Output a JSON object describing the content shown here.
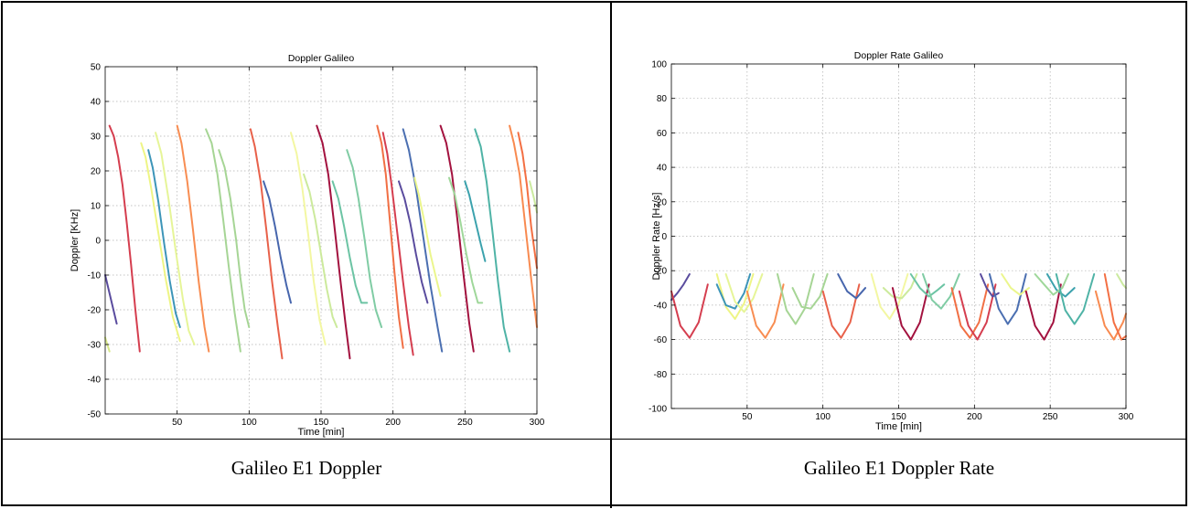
{
  "captions": {
    "left": "Galileo E1 Doppler",
    "right": "Galileo E1 Doppler Rate"
  },
  "chart_data": [
    {
      "type": "line",
      "title": "Doppler Galileo",
      "xlabel": "Time [min]",
      "ylabel": "Doppler [KHz]",
      "xlim": [
        0,
        300
      ],
      "ylim": [
        -50,
        50
      ],
      "xticks": [
        50,
        100,
        150,
        200,
        250,
        300
      ],
      "yticks": [
        50,
        40,
        30,
        20,
        10,
        0,
        -10,
        -20,
        -30,
        -40,
        -50
      ],
      "grid": true,
      "series": [
        {
          "color": "#5a4c9e",
          "x": [
            0,
            8
          ],
          "y": [
            -10,
            -24
          ]
        },
        {
          "color": "#d53e4f",
          "x": [
            3,
            6,
            9,
            12,
            15,
            18,
            21,
            24
          ],
          "y": [
            33,
            30,
            24,
            16,
            5,
            -7,
            -20,
            -32
          ]
        },
        {
          "color": "#d8e88a",
          "x": [
            0,
            3
          ],
          "y": [
            -28,
            -32
          ]
        },
        {
          "color": "#eef585",
          "x": [
            25,
            28,
            32,
            37,
            42,
            47,
            52
          ],
          "y": [
            28,
            24,
            15,
            2,
            -11,
            -22,
            -29
          ]
        },
        {
          "color": "#3d95b8",
          "x": [
            30,
            33,
            37,
            41,
            45,
            49,
            52
          ],
          "y": [
            26,
            21,
            11,
            -1,
            -12,
            -21,
            -25
          ]
        },
        {
          "color": "#e6f598",
          "x": [
            35,
            39,
            44,
            49,
            54,
            58,
            62
          ],
          "y": [
            31,
            25,
            12,
            -3,
            -17,
            -26,
            -30
          ]
        },
        {
          "color": "#f88d52",
          "x": [
            50,
            53,
            57,
            61,
            65,
            69,
            72
          ],
          "y": [
            33,
            28,
            17,
            3,
            -12,
            -25,
            -32
          ]
        },
        {
          "color": "#a6d595",
          "x": [
            70,
            74,
            78,
            82,
            86,
            90,
            94
          ],
          "y": [
            32,
            28,
            19,
            6,
            -8,
            -21,
            -32
          ]
        },
        {
          "color": "#a6d595",
          "x": [
            79,
            83,
            87,
            91,
            94,
            97,
            100
          ],
          "y": [
            26,
            21,
            12,
            0,
            -11,
            -20,
            -25
          ]
        },
        {
          "color": "#e8614a",
          "x": [
            101,
            104,
            108,
            112,
            116,
            120,
            123
          ],
          "y": [
            32,
            27,
            17,
            3,
            -12,
            -25,
            -34
          ]
        },
        {
          "color": "#4766ad",
          "x": [
            110,
            114,
            118,
            122,
            126,
            129
          ],
          "y": [
            17,
            12,
            4,
            -5,
            -13,
            -18
          ]
        },
        {
          "color": "#f3f7a2",
          "x": [
            129,
            133,
            137,
            141,
            145,
            149,
            153
          ],
          "y": [
            31,
            25,
            15,
            2,
            -12,
            -23,
            -30
          ]
        },
        {
          "color": "#ccea9c",
          "x": [
            138,
            142,
            146,
            150,
            154,
            158,
            161
          ],
          "y": [
            19,
            14,
            6,
            -4,
            -14,
            -22,
            -25
          ]
        },
        {
          "color": "#a3123f",
          "x": [
            147,
            151,
            155,
            159,
            163,
            167,
            170
          ],
          "y": [
            33,
            28,
            19,
            5,
            -10,
            -24,
            -34
          ]
        },
        {
          "color": "#6cc4a4",
          "x": [
            158,
            162,
            166,
            170,
            174,
            178,
            182
          ],
          "y": [
            17,
            12,
            4,
            -5,
            -13,
            -18,
            -18
          ]
        },
        {
          "color": "#80cca4",
          "x": [
            168,
            172,
            176,
            180,
            184,
            188,
            192
          ],
          "y": [
            26,
            21,
            12,
            1,
            -11,
            -20,
            -25
          ]
        },
        {
          "color": "#f16f44",
          "x": [
            189,
            192,
            195,
            198,
            201,
            204,
            207
          ],
          "y": [
            33,
            28,
            19,
            5,
            -9,
            -22,
            -31
          ]
        },
        {
          "color": "#d53e4f",
          "x": [
            193,
            196,
            199,
            203,
            207,
            211,
            214
          ],
          "y": [
            31,
            25,
            16,
            2,
            -12,
            -25,
            -33
          ]
        },
        {
          "color": "#5a4c9e",
          "x": [
            204,
            208,
            212,
            216,
            220,
            224
          ],
          "y": [
            17,
            12,
            5,
            -4,
            -12,
            -18
          ]
        },
        {
          "color": "#4b6fb1",
          "x": [
            207,
            211,
            216,
            221,
            226,
            231,
            234
          ],
          "y": [
            32,
            26,
            15,
            1,
            -13,
            -25,
            -32
          ]
        },
        {
          "color": "#ebf68c",
          "x": [
            215,
            218,
            222,
            226,
            230,
            233
          ],
          "y": [
            18,
            13,
            5,
            -4,
            -11,
            -16
          ]
        },
        {
          "color": "#a3123f",
          "x": [
            233,
            237,
            241,
            245,
            249,
            253,
            256
          ],
          "y": [
            33,
            28,
            19,
            5,
            -10,
            -24,
            -32
          ]
        },
        {
          "color": "#3ca2ad",
          "x": [
            250,
            253,
            257,
            261,
            264
          ],
          "y": [
            17,
            13,
            6,
            -1,
            -6
          ]
        },
        {
          "color": "#9fd79a",
          "x": [
            239,
            243,
            247,
            251,
            255,
            259,
            262
          ],
          "y": [
            18,
            13,
            5,
            -4,
            -12,
            -18,
            -18
          ]
        },
        {
          "color": "#4fb3a6",
          "x": [
            257,
            261,
            265,
            269,
            273,
            277,
            281
          ],
          "y": [
            32,
            27,
            17,
            3,
            -12,
            -25,
            -32
          ]
        },
        {
          "color": "#f88a50",
          "x": [
            281,
            284,
            288,
            292,
            296,
            300
          ],
          "y": [
            33,
            28,
            19,
            4,
            -11,
            -25
          ]
        },
        {
          "color": "#f36f43",
          "x": [
            287,
            290,
            293,
            296,
            300
          ],
          "y": [
            31,
            25,
            16,
            4,
            -8
          ]
        },
        {
          "color": "#cbea9f",
          "x": [
            295,
            298,
            300
          ],
          "y": [
            17,
            12,
            8
          ]
        }
      ]
    },
    {
      "type": "line",
      "title": "Doppler Rate Galileo",
      "xlabel": "Time [min]",
      "ylabel": "Doppler Rate [Hz/s]",
      "xlim": [
        0,
        300
      ],
      "ylim": [
        -100,
        100
      ],
      "xticks": [
        50,
        100,
        150,
        200,
        250,
        300
      ],
      "yticks": [
        100,
        80,
        60,
        40,
        20,
        0,
        -20,
        -40,
        -60,
        -80,
        -100
      ],
      "grid": true,
      "series": [
        {
          "color": "#5a4c9e",
          "x": [
            0,
            4,
            8,
            12
          ],
          "y": [
            -37,
            -33,
            -28,
            -22
          ]
        },
        {
          "color": "#d53e4f",
          "x": [
            0,
            6,
            12,
            18,
            24
          ],
          "y": [
            -32,
            -52,
            -59,
            -50,
            -28
          ]
        },
        {
          "color": "#eef585",
          "x": [
            30,
            36,
            42,
            48,
            54
          ],
          "y": [
            -22,
            -41,
            -48,
            -39,
            -22
          ]
        },
        {
          "color": "#3d95b8",
          "x": [
            30,
            36,
            42,
            48,
            52
          ],
          "y": [
            -28,
            -40,
            -42,
            -33,
            -22
          ]
        },
        {
          "color": "#e6f598",
          "x": [
            36,
            42,
            48,
            54,
            60
          ],
          "y": [
            -22,
            -38,
            -44,
            -36,
            -22
          ]
        },
        {
          "color": "#f88d52",
          "x": [
            50,
            56,
            62,
            68,
            74
          ],
          "y": [
            -32,
            -52,
            -59,
            -50,
            -28
          ]
        },
        {
          "color": "#a6d595",
          "x": [
            70,
            76,
            82,
            88,
            94
          ],
          "y": [
            -22,
            -43,
            -51,
            -42,
            -22
          ]
        },
        {
          "color": "#a6d595",
          "x": [
            80,
            86,
            92,
            98,
            103
          ],
          "y": [
            -30,
            -41,
            -42,
            -35,
            -22
          ]
        },
        {
          "color": "#e8614a",
          "x": [
            100,
            106,
            112,
            118,
            124
          ],
          "y": [
            -32,
            -52,
            -59,
            -50,
            -28
          ]
        },
        {
          "color": "#4766ad",
          "x": [
            110,
            116,
            122,
            128
          ],
          "y": [
            -22,
            -32,
            -36,
            -30
          ]
        },
        {
          "color": "#f3f7a2",
          "x": [
            132,
            138,
            144,
            150,
            156
          ],
          "y": [
            -22,
            -41,
            -48,
            -39,
            -22
          ]
        },
        {
          "color": "#ccea9c",
          "x": [
            140,
            146,
            152,
            158,
            162
          ],
          "y": [
            -30,
            -35,
            -36,
            -30,
            -22
          ]
        },
        {
          "color": "#a3123f",
          "x": [
            146,
            152,
            158,
            164,
            170
          ],
          "y": [
            -30,
            -52,
            -60,
            -50,
            -28
          ]
        },
        {
          "color": "#6cc4a4",
          "x": [
            158,
            164,
            170,
            176,
            180
          ],
          "y": [
            -22,
            -30,
            -35,
            -31,
            -28
          ]
        },
        {
          "color": "#80cca4",
          "x": [
            166,
            172,
            178,
            184,
            190
          ],
          "y": [
            -22,
            -37,
            -42,
            -35,
            -22
          ]
        },
        {
          "color": "#f16f44",
          "x": [
            185,
            191,
            197,
            203,
            209
          ],
          "y": [
            -30,
            -52,
            -59,
            -50,
            -28
          ]
        },
        {
          "color": "#d53e4f",
          "x": [
            190,
            196,
            202,
            208,
            214
          ],
          "y": [
            -32,
            -52,
            -60,
            -50,
            -28
          ]
        },
        {
          "color": "#5a4c9e",
          "x": [
            204,
            208,
            212,
            216
          ],
          "y": [
            -22,
            -30,
            -35,
            -33
          ]
        },
        {
          "color": "#4b6fb1",
          "x": [
            210,
            216,
            222,
            228,
            234
          ],
          "y": [
            -22,
            -42,
            -51,
            -43,
            -22
          ]
        },
        {
          "color": "#ebf68c",
          "x": [
            218,
            224,
            230,
            236
          ],
          "y": [
            -22,
            -30,
            -34,
            -30
          ]
        },
        {
          "color": "#a3123f",
          "x": [
            234,
            240,
            246,
            252,
            257
          ],
          "y": [
            -32,
            -52,
            -60,
            -50,
            -28
          ]
        },
        {
          "color": "#3ca2ad",
          "x": [
            248,
            254,
            260,
            266
          ],
          "y": [
            -22,
            -31,
            -35,
            -30
          ]
        },
        {
          "color": "#9fd79a",
          "x": [
            240,
            246,
            252,
            258,
            262
          ],
          "y": [
            -22,
            -28,
            -34,
            -30,
            -22
          ]
        },
        {
          "color": "#4fb3a6",
          "x": [
            254,
            260,
            266,
            272,
            279
          ],
          "y": [
            -22,
            -43,
            -51,
            -43,
            -22
          ]
        },
        {
          "color": "#f88a50",
          "x": [
            280,
            286,
            292,
            298,
            300
          ],
          "y": [
            -32,
            -52,
            -60,
            -50,
            -45
          ]
        },
        {
          "color": "#f36f43",
          "x": [
            286,
            292,
            297,
            300
          ],
          "y": [
            -22,
            -50,
            -60,
            -58
          ]
        },
        {
          "color": "#cbea9f",
          "x": [
            294,
            298,
            300
          ],
          "y": [
            -22,
            -28,
            -30
          ]
        }
      ]
    }
  ]
}
